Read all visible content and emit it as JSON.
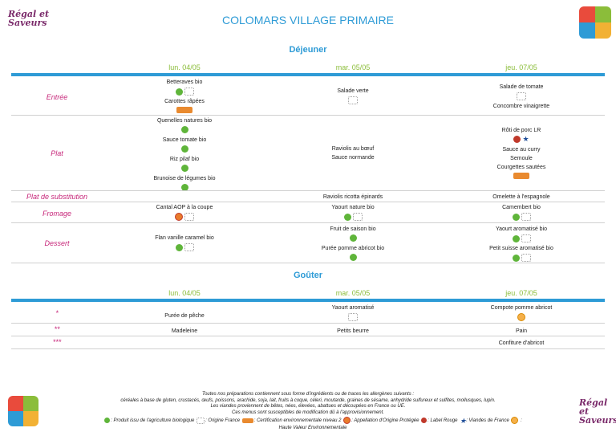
{
  "brand": {
    "logo_line1": "Régal et",
    "logo_line2": "Saveurs"
  },
  "title": "COLOMARS VILLAGE PRIMAIRE",
  "dejeuner": {
    "section": "Déjeuner",
    "days": [
      "lun. 04/05",
      "mar. 05/05",
      "jeu. 07/05"
    ],
    "rows": {
      "entree": {
        "label": "Entrée",
        "d1": [
          "Betteraves bio",
          "Carottes râpées"
        ],
        "d2": [
          "Salade verte"
        ],
        "d3": [
          "Salade de tomate",
          "Concombre vinaigrette"
        ]
      },
      "plat": {
        "label": "Plat",
        "d1": [
          "Quenelles natures bio",
          "Sauce tomate bio",
          "Riz pilaf bio",
          "Brunoise de légumes bio"
        ],
        "d2": [
          "Raviolis au bœuf",
          "Sauce normande"
        ],
        "d3": [
          "Rôti de porc LR",
          "Sauce au curry",
          "Semoule",
          "Courgettes sautées"
        ]
      },
      "substitution": {
        "label": "Plat de substitution",
        "d1": [],
        "d2": [
          "Raviolis ricotta épinards"
        ],
        "d3": [
          "Omelette à l'espagnole"
        ]
      },
      "fromage": {
        "label": "Fromage",
        "d1": [
          "Cantal AOP à la coupe"
        ],
        "d2": [
          "Yaourt nature bio"
        ],
        "d3": [
          "Camembert bio"
        ]
      },
      "dessert": {
        "label": "Dessert",
        "d1": [
          "Flan vanille caramel bio"
        ],
        "d2": [
          "Fruit de saison bio",
          "Purée pomme abricot bio"
        ],
        "d3": [
          "Yaourt aromatisé bio",
          "Petit suisse aromatisé bio"
        ]
      }
    }
  },
  "gouter": {
    "section": "Goûter",
    "days": [
      "lun. 04/05",
      "mar. 05/05",
      "jeu. 07/05"
    ],
    "rows": [
      {
        "label": "*",
        "d1": "Purée de pêche",
        "d2": "Yaourt aromatisé",
        "d3": "Compote pomme abricot"
      },
      {
        "label": "**",
        "d1": "Madeleine",
        "d2": "Petits beurre",
        "d3": "Pain"
      },
      {
        "label": "***",
        "d1": "",
        "d2": "",
        "d3": "Confiture d'abricot"
      }
    ]
  },
  "footer": {
    "line1": "Toutes nos préparations contiennent sous forme d'ingrédients ou de traces les allergènes suivants :",
    "line2": "céréales à base de gluten, crustacés, œufs, poissons, arachide, soja, lait, fruits à coque, céleri, moutarde, graines de sésame, anhydride sulfureux et sulfites, mollusques, lupin.",
    "line3": "Les viandes proviennent de bêtes, nées, élevées, abattues et découpées en France ou UE.",
    "line4": "Ces menus sont susceptibles de modification dû à l'approvisionnement."
  },
  "legend": {
    "bio": ": Produit issu de l'agriculture biologique",
    "fr": ": Origine France",
    "env": ": Certification environnementale niveau 2",
    "aop": ": Appellation d'Origine Protégée",
    "lr": ": Label Rouge",
    "vf": ": Viandes de France",
    "hve": "Haute Valeur Environnementale"
  },
  "colors": {
    "accent": "#2e9bd6",
    "day": "#8bbd3a",
    "label": "#c7277a",
    "bio": "#5fb53a"
  }
}
